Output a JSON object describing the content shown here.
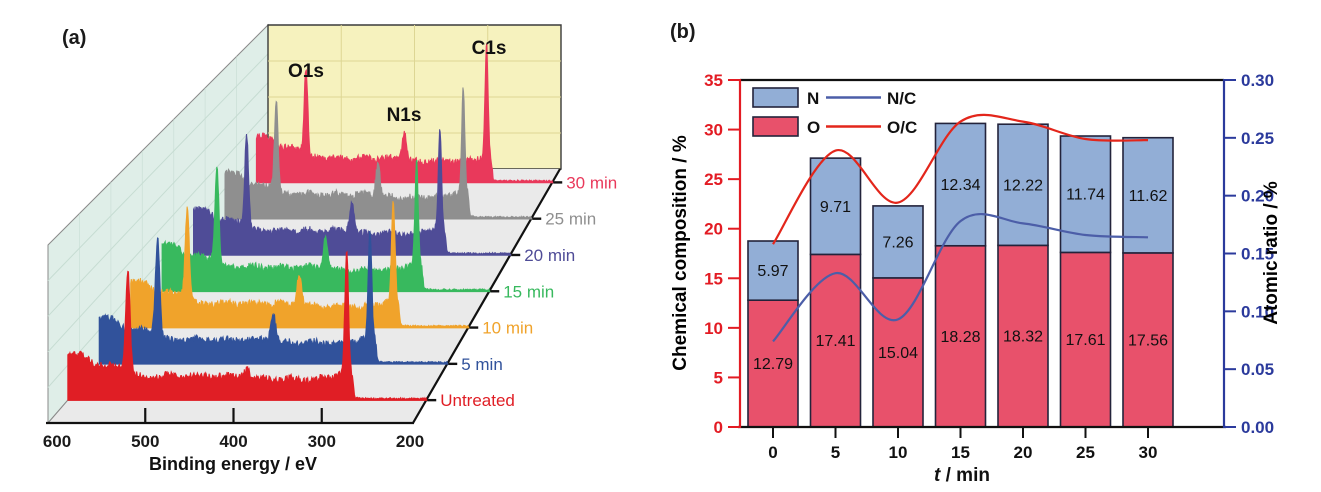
{
  "figure": {
    "background": "#ffffff",
    "panel_a": {
      "tag": "(a)",
      "xlabel": "Binding energy / eV",
      "x_ticks": [
        "600",
        "500",
        "400",
        "300",
        "200"
      ],
      "colors": {
        "back_wall": "#f6f2be",
        "back_wall_grid": "#ddd694",
        "back_wall_edge": "#3a3a3a",
        "left_wall": "#dfeee8",
        "left_wall_grid": "#c6dcd2",
        "floor": "#eaeaea",
        "floor_line": "#d7d7d7",
        "axis": "#111111",
        "edge": "#8a8a8a"
      }
    },
    "panel_b": {
      "tag": "(b)",
      "xlabel_var": "t",
      "xlabel_rest": " / min",
      "axis_colors": {
        "left": "#e31b23",
        "right": "#2b3a9c",
        "frame": "#111111"
      },
      "bar_border": "#23233b",
      "value_label_color": "#111111"
    }
  },
  "chart_data": [
    {
      "panel": "a",
      "type": "area",
      "variant": "3d-waterfall-xps-survey",
      "xlabel": "Binding energy / eV",
      "x_range": [
        600,
        200
      ],
      "x_ticks": [
        600,
        500,
        400,
        300,
        200
      ],
      "peaks": [
        {
          "name": "O1s",
          "binding_energy_eV": 532
        },
        {
          "name": "N1s",
          "binding_energy_eV": 400
        },
        {
          "name": "C1s",
          "binding_energy_eV": 285
        }
      ],
      "series": [
        {
          "name": "Untreated",
          "color": "#e01e25",
          "peak_amp": {
            "O1s": 100,
            "N1s": 9,
            "C1s": 124
          }
        },
        {
          "name": "5 min",
          "color": "#31529b",
          "peak_amp": {
            "O1s": 96,
            "N1s": 28,
            "C1s": 108
          }
        },
        {
          "name": "10 min",
          "color": "#f0a32b",
          "peak_amp": {
            "O1s": 88,
            "N1s": 30,
            "C1s": 102
          }
        },
        {
          "name": "15 min",
          "color": "#38b95e",
          "peak_amp": {
            "O1s": 92,
            "N1s": 31,
            "C1s": 103
          }
        },
        {
          "name": "20 min",
          "color": "#4f4c97",
          "peak_amp": {
            "O1s": 90,
            "N1s": 31,
            "C1s": 101
          }
        },
        {
          "name": "25 min",
          "color": "#8f8f8f",
          "peak_amp": {
            "O1s": 85,
            "N1s": 32,
            "C1s": 104
          }
        },
        {
          "name": "30 min",
          "color": "#e9395b",
          "peak_amp": {
            "O1s": 84,
            "N1s": 28,
            "C1s": 112
          }
        }
      ]
    },
    {
      "panel": "b",
      "type": "bar",
      "stacked": true,
      "categories": [
        0,
        5,
        10,
        15,
        20,
        25,
        30
      ],
      "series": [
        {
          "name": "O",
          "color": "#e8516b",
          "values": [
            12.79,
            17.41,
            15.04,
            18.28,
            18.32,
            17.61,
            17.56
          ]
        },
        {
          "name": "N",
          "color": "#92aed6",
          "values": [
            5.97,
            9.71,
            7.26,
            12.34,
            12.22,
            11.74,
            11.62
          ]
        }
      ],
      "lines": [
        {
          "name": "N/C",
          "color": "#4c5ea8",
          "axis": "right",
          "values": [
            0.074,
            0.133,
            0.093,
            0.178,
            0.176,
            0.166,
            0.164
          ]
        },
        {
          "name": "O/C",
          "color": "#e3261b",
          "axis": "right",
          "values": [
            0.158,
            0.239,
            0.194,
            0.264,
            0.264,
            0.249,
            0.248
          ]
        }
      ],
      "legend": [
        "N",
        "N/C",
        "O",
        "O/C"
      ],
      "legend_position": "top-left",
      "xlabel": "t / min",
      "ylabel_left": "Chemical composition / %",
      "ylim_left": [
        0,
        35
      ],
      "yticks_left": [
        0,
        5,
        10,
        15,
        20,
        25,
        30,
        35
      ],
      "ylabel_right": "Atomic ratio / %",
      "ylim_right": [
        0,
        0.3
      ],
      "yticks_right": [
        "0.00",
        "0.05",
        "0.10",
        "0.15",
        "0.20",
        "0.25",
        "0.30"
      ],
      "grid": false
    }
  ]
}
